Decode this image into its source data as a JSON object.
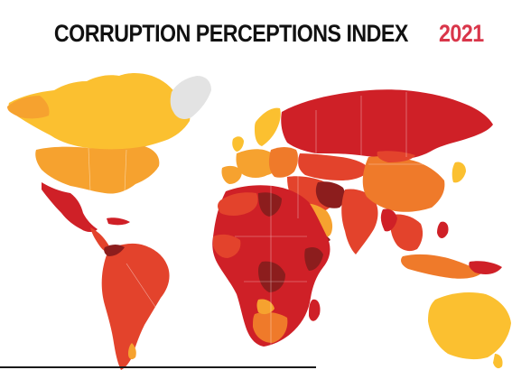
{
  "title": {
    "text": "CORRUPTION PERCEPTIONS INDEX",
    "year": "2021",
    "year_color": "#d9364a"
  },
  "map": {
    "projection": "world",
    "background": "#ffffff",
    "no_data_color": "#e3e3e3",
    "score_colors": {
      "very_high_corruption": "#8c1d1d",
      "high_corruption": "#cf2027",
      "medium_high_corruption": "#e3432c",
      "medium_corruption": "#ef7a2a",
      "low_medium_corruption": "#f6a22f",
      "low_corruption": "#fbc030"
    },
    "regions": [
      {
        "name": "Canada",
        "band": "low_corruption"
      },
      {
        "name": "United States",
        "band": "low_medium_corruption"
      },
      {
        "name": "Mexico",
        "band": "high_corruption"
      },
      {
        "name": "Central America",
        "band": "high_corruption"
      },
      {
        "name": "South America",
        "band": "medium_high_corruption"
      },
      {
        "name": "Venezuela",
        "band": "very_high_corruption"
      },
      {
        "name": "Greenland",
        "band": "no_data"
      },
      {
        "name": "Scandinavia",
        "band": "low_corruption"
      },
      {
        "name": "Western Europe",
        "band": "low_medium_corruption"
      },
      {
        "name": "Eastern Europe",
        "band": "medium_corruption"
      },
      {
        "name": "Russia",
        "band": "high_corruption"
      },
      {
        "name": "Middle East",
        "band": "medium_high_corruption"
      },
      {
        "name": "Africa",
        "band": "high_corruption"
      },
      {
        "name": "South Asia",
        "band": "medium_high_corruption"
      },
      {
        "name": "China",
        "band": "medium_corruption"
      },
      {
        "name": "Southeast Asia",
        "band": "medium_high_corruption"
      },
      {
        "name": "Australia",
        "band": "low_corruption"
      }
    ]
  }
}
